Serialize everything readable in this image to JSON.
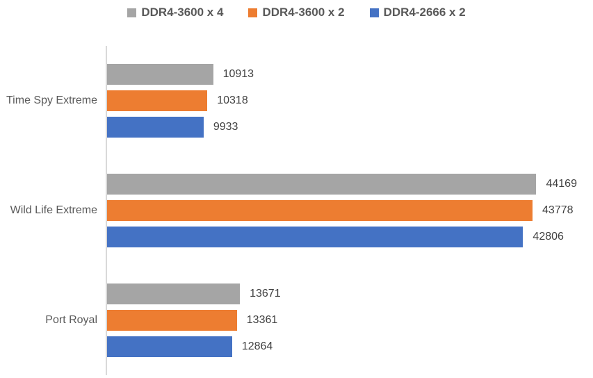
{
  "chart_data": {
    "type": "bar",
    "orientation": "horizontal",
    "title": "",
    "categories": [
      "Time Spy Extreme",
      "Wild Life Extreme",
      "Port Royal"
    ],
    "series": [
      {
        "name": "DDR4-3600 x 4",
        "color": "#a5a5a5",
        "values": [
          10913,
          44169,
          13671
        ]
      },
      {
        "name": "DDR4-3600 x 2",
        "color": "#ed7d31",
        "values": [
          10318,
          43778,
          13361
        ]
      },
      {
        "name": "DDR4-2666 x 2",
        "color": "#4472c4",
        "values": [
          9933,
          42806,
          12864
        ]
      }
    ],
    "xlim": [
      0,
      50000
    ],
    "grid": false,
    "legend_position": "top",
    "data_labels": true
  },
  "style": {
    "background": "#ffffff",
    "axis_line_color": "#d9d9d9",
    "category_label_color": "#595959",
    "data_label_color": "#404040",
    "legend_label_color": "#595959"
  }
}
